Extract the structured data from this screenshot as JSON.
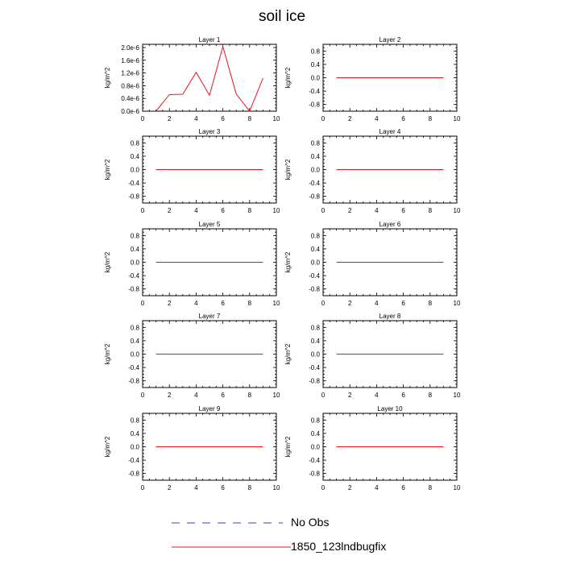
{
  "title": "soil ice",
  "legend": [
    {
      "label": "No Obs",
      "color": "#3b3bd6",
      "style": "dashed"
    },
    {
      "label": "1850_123lndbugfix",
      "color": "#e8141c",
      "style": "solid"
    }
  ],
  "chart_data": [
    {
      "type": "line",
      "title": "Layer 1",
      "ylabel": "kg/m^2",
      "xlim": [
        0,
        10
      ],
      "ylim": [
        0,
        2.1e-06
      ],
      "xticks": [
        "0",
        "2",
        "4",
        "6",
        "8",
        "10"
      ],
      "yticks": [
        {
          "v": 0,
          "label": "0.0e-6"
        },
        {
          "v": 4e-07,
          "label": "0.4e-6"
        },
        {
          "v": 8e-07,
          "label": "0.8e-6"
        },
        {
          "v": 1.2e-06,
          "label": "1.2e-6"
        },
        {
          "v": 1.6e-06,
          "label": "1.6e-6"
        },
        {
          "v": 2e-06,
          "label": "2.0e-6"
        }
      ],
      "series": [
        {
          "name": "1850_123lndbugfix",
          "color": "#e8141c",
          "x": [
            1,
            2,
            3,
            4,
            5,
            6,
            7,
            8,
            9
          ],
          "y": [
            0,
            5.2e-07,
            5.3e-07,
            1.22e-06,
            5e-07,
            2.03e-06,
            5.4e-07,
            0,
            1.04e-06
          ]
        }
      ]
    },
    {
      "type": "line",
      "title": "Layer 2",
      "ylabel": "kg/m^2",
      "xlim": [
        0,
        10
      ],
      "ylim": [
        -1,
        1
      ],
      "xticks": [
        "0",
        "2",
        "4",
        "6",
        "8",
        "10"
      ],
      "yticks": [
        {
          "v": -0.8,
          "label": "-0.8"
        },
        {
          "v": -0.4,
          "label": "-0.4"
        },
        {
          "v": 0,
          "label": "0.0"
        },
        {
          "v": 0.4,
          "label": "0.4"
        },
        {
          "v": 0.8,
          "label": "0.8"
        }
      ],
      "series": [
        {
          "name": "1850_123lndbugfix",
          "color": "#e8141c",
          "x": [
            1,
            2,
            3,
            4,
            5,
            6,
            7,
            8,
            9
          ],
          "y": [
            0,
            0,
            0,
            0,
            0,
            0,
            0,
            0,
            0
          ]
        }
      ]
    },
    {
      "type": "line",
      "title": "Layer 3",
      "ylabel": "kg/m^2",
      "xlim": [
        0,
        10
      ],
      "ylim": [
        -1,
        1
      ],
      "xticks": [
        "0",
        "2",
        "4",
        "6",
        "8",
        "10"
      ],
      "yticks": [
        {
          "v": -0.8,
          "label": "-0.8"
        },
        {
          "v": -0.4,
          "label": "-0.4"
        },
        {
          "v": 0,
          "label": "0.0"
        },
        {
          "v": 0.4,
          "label": "0.4"
        },
        {
          "v": 0.8,
          "label": "0.8"
        }
      ],
      "series": [
        {
          "name": "1850_123lndbugfix",
          "color": "#e8141c",
          "x": [
            1,
            2,
            3,
            4,
            5,
            6,
            7,
            8,
            9
          ],
          "y": [
            0,
            0,
            0,
            0,
            0,
            0,
            0,
            0,
            0
          ]
        }
      ]
    },
    {
      "type": "line",
      "title": "Layer 4",
      "ylabel": "kg/m^2",
      "xlim": [
        0,
        10
      ],
      "ylim": [
        -1,
        1
      ],
      "xticks": [
        "0",
        "2",
        "4",
        "6",
        "8",
        "10"
      ],
      "yticks": [
        {
          "v": -0.8,
          "label": "-0.8"
        },
        {
          "v": -0.4,
          "label": "-0.4"
        },
        {
          "v": 0,
          "label": "0.0"
        },
        {
          "v": 0.4,
          "label": "0.4"
        },
        {
          "v": 0.8,
          "label": "0.8"
        }
      ],
      "series": [
        {
          "name": "1850_123lndbugfix",
          "color": "#e8141c",
          "x": [
            1,
            2,
            3,
            4,
            5,
            6,
            7,
            8,
            9
          ],
          "y": [
            0,
            0,
            0,
            0,
            0,
            0,
            0,
            0,
            0
          ]
        }
      ]
    },
    {
      "type": "line",
      "title": "Layer 5",
      "ylabel": "kg/m^2",
      "xlim": [
        0,
        10
      ],
      "ylim": [
        -1,
        1
      ],
      "xticks": [
        "0",
        "2",
        "4",
        "6",
        "8",
        "10"
      ],
      "yticks": [
        {
          "v": -0.8,
          "label": "-0.8"
        },
        {
          "v": -0.4,
          "label": "-0.4"
        },
        {
          "v": 0,
          "label": "0.0"
        },
        {
          "v": 0.4,
          "label": "0.4"
        },
        {
          "v": 0.8,
          "label": "0.8"
        }
      ],
      "series": [
        {
          "name": "1850_123lndbugfix",
          "color": "#e8141c",
          "x": [
            1,
            2,
            3,
            4,
            5,
            6,
            7,
            8,
            9
          ],
          "y": [
            0,
            0,
            0,
            0,
            0,
            0,
            0,
            0,
            0
          ]
        }
      ]
    },
    {
      "type": "line",
      "title": "Layer 6",
      "ylabel": "kg/m^2",
      "xlim": [
        0,
        10
      ],
      "ylim": [
        -1,
        1
      ],
      "xticks": [
        "0",
        "2",
        "4",
        "6",
        "8",
        "10"
      ],
      "yticks": [
        {
          "v": -0.8,
          "label": "-0.8"
        },
        {
          "v": -0.4,
          "label": "-0.4"
        },
        {
          "v": 0,
          "label": "0.0"
        },
        {
          "v": 0.4,
          "label": "0.4"
        },
        {
          "v": 0.8,
          "label": "0.8"
        }
      ],
      "series": [
        {
          "name": "1850_123lndbugfix",
          "color": "#e8141c",
          "x": [
            1,
            2,
            3,
            4,
            5,
            6,
            7,
            8,
            9
          ],
          "y": [
            0,
            0,
            0,
            0,
            0,
            0,
            0,
            0,
            0
          ]
        }
      ]
    },
    {
      "type": "line",
      "title": "Layer 7",
      "ylabel": "kg/m^2",
      "xlim": [
        0,
        10
      ],
      "ylim": [
        -1,
        1
      ],
      "xticks": [
        "0",
        "2",
        "4",
        "6",
        "8",
        "10"
      ],
      "yticks": [
        {
          "v": -0.8,
          "label": "-0.8"
        },
        {
          "v": -0.4,
          "label": "-0.4"
        },
        {
          "v": 0,
          "label": "0.0"
        },
        {
          "v": 0.4,
          "label": "0.4"
        },
        {
          "v": 0.8,
          "label": "0.8"
        }
      ],
      "series": [
        {
          "name": "1850_123lndbugfix",
          "color": "#e8141c",
          "x": [
            1,
            2,
            3,
            4,
            5,
            6,
            7,
            8,
            9
          ],
          "y": [
            0,
            0,
            0,
            0,
            0,
            0,
            0,
            0,
            0
          ]
        }
      ]
    },
    {
      "type": "line",
      "title": "Layer 8",
      "ylabel": "kg/m^2",
      "xlim": [
        0,
        10
      ],
      "ylim": [
        -1,
        1
      ],
      "xticks": [
        "0",
        "2",
        "4",
        "6",
        "8",
        "10"
      ],
      "yticks": [
        {
          "v": -0.8,
          "label": "-0.8"
        },
        {
          "v": -0.4,
          "label": "-0.4"
        },
        {
          "v": 0,
          "label": "0.0"
        },
        {
          "v": 0.4,
          "label": "0.4"
        },
        {
          "v": 0.8,
          "label": "0.8"
        }
      ],
      "series": [
        {
          "name": "1850_123lndbugfix",
          "color": "#e8141c",
          "x": [
            1,
            2,
            3,
            4,
            5,
            6,
            7,
            8,
            9
          ],
          "y": [
            0,
            0,
            0,
            0,
            0,
            0,
            0,
            0,
            0
          ]
        }
      ]
    },
    {
      "type": "line",
      "title": "Layer 9",
      "ylabel": "kg/m^2",
      "xlim": [
        0,
        10
      ],
      "ylim": [
        -1,
        1
      ],
      "xticks": [
        "0",
        "2",
        "4",
        "6",
        "8",
        "10"
      ],
      "yticks": [
        {
          "v": -0.8,
          "label": "-0.8"
        },
        {
          "v": -0.4,
          "label": "-0.4"
        },
        {
          "v": 0,
          "label": "0.0"
        },
        {
          "v": 0.4,
          "label": "0.4"
        },
        {
          "v": 0.8,
          "label": "0.8"
        }
      ],
      "series": [
        {
          "name": "1850_123lndbugfix",
          "color": "#e8141c",
          "x": [
            1,
            2,
            3,
            4,
            5,
            6,
            7,
            8,
            9
          ],
          "y": [
            0,
            0,
            0,
            0,
            0,
            0,
            0,
            0,
            0
          ]
        }
      ]
    },
    {
      "type": "line",
      "title": "Layer 10",
      "ylabel": "kg/m^2",
      "xlim": [
        0,
        10
      ],
      "ylim": [
        -1,
        1
      ],
      "xticks": [
        "0",
        "2",
        "4",
        "6",
        "8",
        "10"
      ],
      "yticks": [
        {
          "v": -0.8,
          "label": "-0.8"
        },
        {
          "v": -0.4,
          "label": "-0.4"
        },
        {
          "v": 0,
          "label": "0.0"
        },
        {
          "v": 0.4,
          "label": "0.4"
        },
        {
          "v": 0.8,
          "label": "0.8"
        }
      ],
      "series": [
        {
          "name": "1850_123lndbugfix",
          "color": "#e8141c",
          "x": [
            1,
            2,
            3,
            4,
            5,
            6,
            7,
            8,
            9
          ],
          "y": [
            0,
            0,
            0,
            0,
            0,
            0,
            0,
            0,
            0
          ]
        }
      ]
    }
  ]
}
